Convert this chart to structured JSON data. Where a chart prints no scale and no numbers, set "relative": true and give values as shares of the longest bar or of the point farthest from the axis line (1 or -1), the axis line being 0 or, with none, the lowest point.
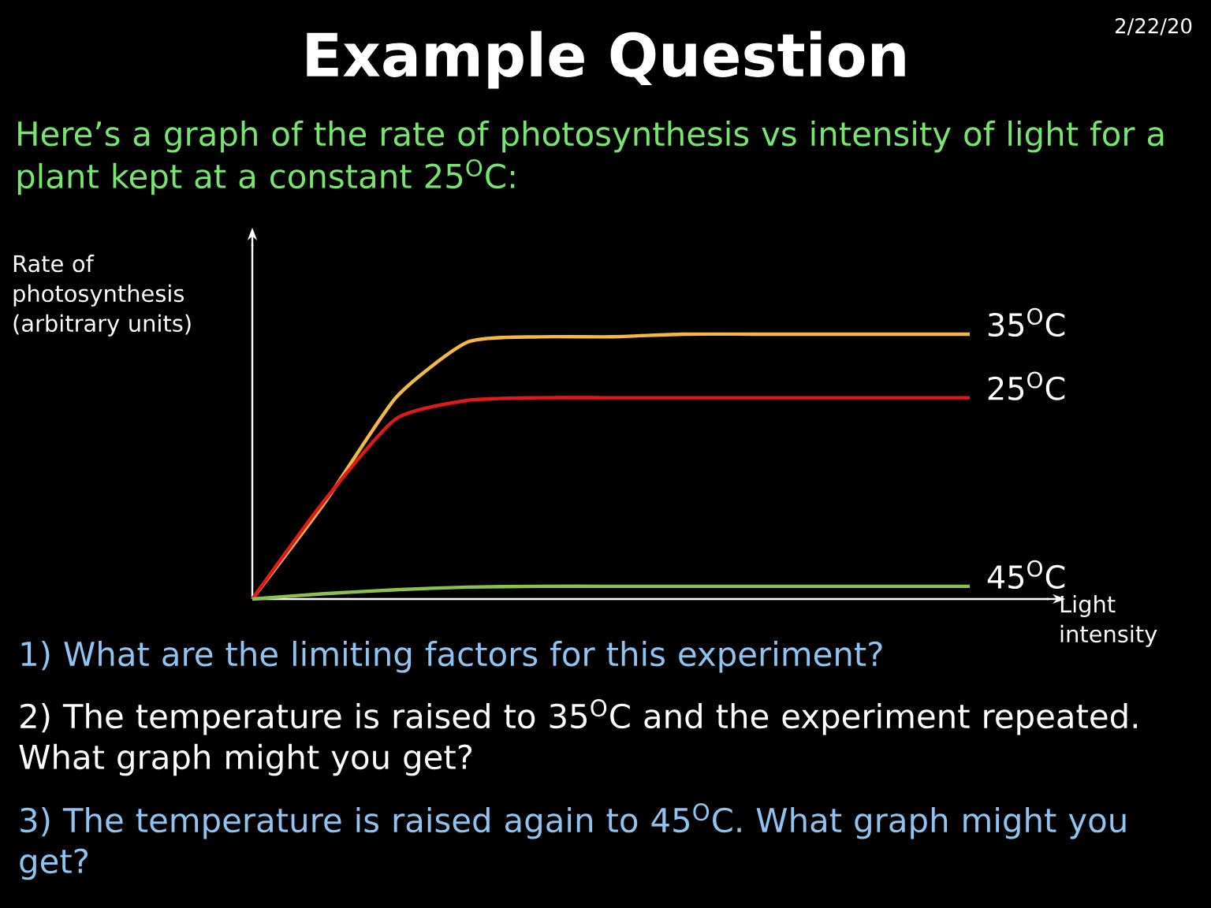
{
  "chart_data": {
    "type": "line",
    "relative": true,
    "title": "Example Question",
    "subtitle": "Here’s a graph of the rate of photosynthesis vs intensity of light for a plant kept at a constant 25$^{O}$C:",
    "ylabel": "Rate of photosynthesis (arbitrary units)",
    "xlabel": "Light intensity",
    "annotations": [
      "2/22/20",
      "1) What are the limiting factors for this experiment?",
      "2) The temperature is raised to 35$^{O}$C and the experiment repeated.  What graph might you get?",
      "3) The temperature is raised again to 45$^{O}$C.  What graph might you get?"
    ],
    "categories": [
      null,
      null,
      null,
      null,
      null,
      null,
      null,
      null,
      null,
      null,
      null
    ],
    "series": [
      {
        "name": "35$^{O}$C",
        "color": "#f5b942",
        "values": [
          0,
          0.36,
          0.76,
          0.97,
          0.99,
          0.99,
          1,
          1,
          1,
          1,
          1
        ]
      },
      {
        "name": "25$^{O}$C",
        "color": "#e0191b",
        "values": [
          0,
          0.37,
          0.68,
          0.75,
          0.76,
          0.76,
          0.76,
          0.76,
          0.76,
          0.76,
          0.76
        ]
      },
      {
        "name": "45$^{O}$C",
        "color": "#8cc152",
        "values": [
          0,
          0.02,
          0.035,
          0.045,
          0.048,
          0.048,
          0.048,
          0.048,
          0.048,
          0.048,
          0.048
        ]
      }
    ]
  }
}
